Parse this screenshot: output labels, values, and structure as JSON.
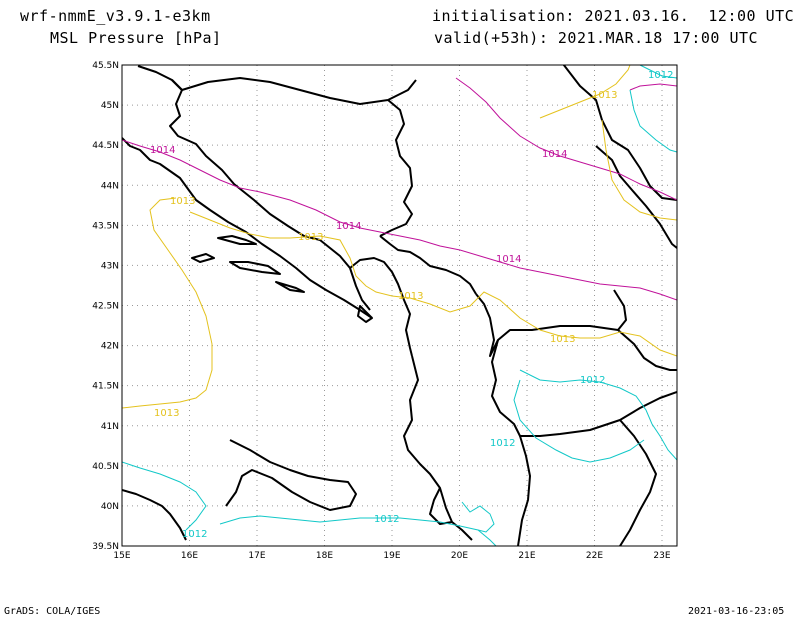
{
  "header": {
    "model": "wrf-nmmE_v3.9.1-e3km",
    "field": "MSL Pressure [hPa]",
    "init": "initialisation: 2021.03.16.  12:00 UTC",
    "valid": "valid(+53h): 2021.MAR.18 17:00 UTC"
  },
  "map": {
    "lon_labels": [
      "15E",
      "16E",
      "17E",
      "18E",
      "19E",
      "20E",
      "21E",
      "22E",
      "23E"
    ],
    "lat_labels": [
      "45.5N",
      "45N",
      "44.5N",
      "44N",
      "43.5N",
      "43N",
      "42.5N",
      "42N",
      "41.5N",
      "41N",
      "40.5N",
      "40N",
      "39.5N"
    ],
    "contour_labels": {
      "c1014": "1014",
      "c1013": "1013",
      "c1012": "1012"
    },
    "colors": {
      "c1014": "#c0129a",
      "c1013": "#e4c21e",
      "c1012": "#12c8c8",
      "border": "#000000",
      "grid": "#999999"
    }
  },
  "footer": {
    "left": "GrADS: COLA/IGES",
    "right": "2021-03-16-23:05"
  }
}
